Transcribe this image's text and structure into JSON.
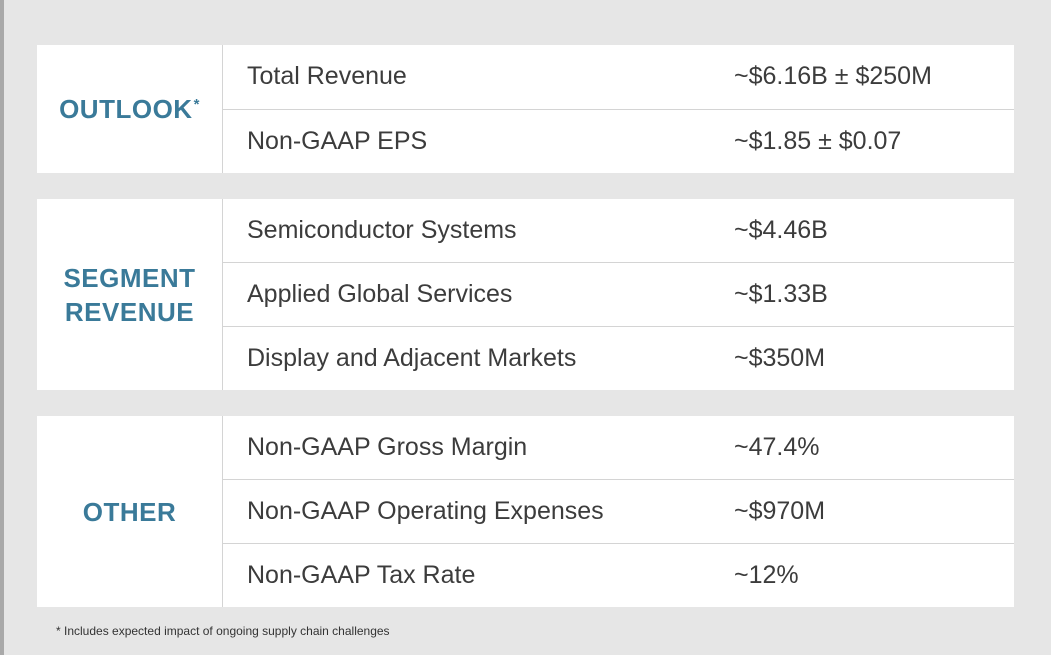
{
  "sections": {
    "outlook": {
      "label": "OUTLOOK",
      "label_mark": "*",
      "rows": [
        {
          "name": "Total Revenue",
          "value": "~$6.16B ± $250M"
        },
        {
          "name": "Non-GAAP EPS",
          "value": "~$1.85 ± $0.07"
        }
      ]
    },
    "segment": {
      "label_line1": "SEGMENT",
      "label_line2": "REVENUE",
      "rows": [
        {
          "name": "Semiconductor Systems",
          "value": "~$4.46B"
        },
        {
          "name": "Applied Global Services",
          "value": "~$1.33B"
        },
        {
          "name": "Display and Adjacent Markets",
          "value": "~$350M"
        }
      ]
    },
    "other": {
      "label": "OTHER",
      "rows": [
        {
          "name": "Non-GAAP Gross Margin",
          "value": "~47.4%"
        },
        {
          "name": "Non-GAAP Operating Expenses",
          "value": "~$970M"
        },
        {
          "name": "Non-GAAP Tax Rate",
          "value": "~12%"
        }
      ]
    }
  },
  "footnote": "* Includes expected impact of ongoing supply chain challenges",
  "colors": {
    "label": "#3a7a99",
    "background": "#e6e6e6",
    "panel": "#ffffff",
    "text": "#3c3c3c",
    "divider": "#d4d4d4"
  }
}
